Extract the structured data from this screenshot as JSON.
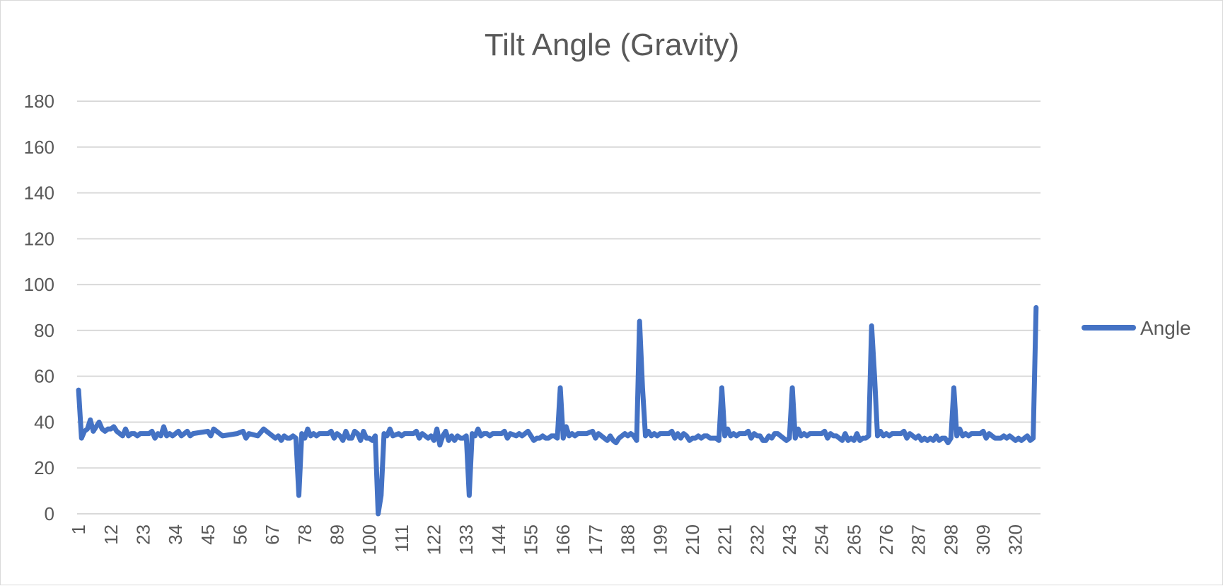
{
  "chart_data": {
    "type": "line",
    "title": "Tilt Angle (Gravity)",
    "xlabel": "",
    "ylabel": "",
    "ylim": [
      0,
      180
    ],
    "yticks": [
      0,
      20,
      40,
      60,
      80,
      100,
      120,
      140,
      160,
      180
    ],
    "xtick_labels": [
      "1",
      "12",
      "23",
      "34",
      "45",
      "56",
      "67",
      "78",
      "89",
      "100",
      "111",
      "122",
      "133",
      "144",
      "155",
      "166",
      "177",
      "188",
      "199",
      "210",
      "221",
      "232",
      "243",
      "254",
      "265",
      "276",
      "287",
      "298",
      "309",
      "320"
    ],
    "grid": true,
    "legend_position": "right",
    "x_count": 328,
    "series": [
      {
        "name": "Angle",
        "color": "#4472c4",
        "points": [
          [
            1,
            54
          ],
          [
            2,
            33
          ],
          [
            3,
            36
          ],
          [
            4,
            37
          ],
          [
            5,
            41
          ],
          [
            6,
            36
          ],
          [
            7,
            38
          ],
          [
            8,
            40
          ],
          [
            9,
            37
          ],
          [
            10,
            36
          ],
          [
            11,
            37
          ],
          [
            12,
            37
          ],
          [
            13,
            38
          ],
          [
            14,
            36
          ],
          [
            15,
            35
          ],
          [
            16,
            34
          ],
          [
            17,
            37
          ],
          [
            18,
            34
          ],
          [
            19,
            35
          ],
          [
            20,
            35
          ],
          [
            21,
            34
          ],
          [
            22,
            35
          ],
          [
            23,
            35
          ],
          [
            24,
            35
          ],
          [
            25,
            35
          ],
          [
            26,
            36
          ],
          [
            27,
            33
          ],
          [
            28,
            35
          ],
          [
            29,
            34
          ],
          [
            30,
            38
          ],
          [
            31,
            34
          ],
          [
            32,
            35
          ],
          [
            33,
            34
          ],
          [
            34,
            35
          ],
          [
            35,
            36
          ],
          [
            36,
            34
          ],
          [
            37,
            35
          ],
          [
            38,
            36
          ],
          [
            39,
            34
          ],
          [
            40,
            35
          ],
          [
            45,
            36
          ],
          [
            46,
            34
          ],
          [
            47,
            37
          ],
          [
            50,
            34
          ],
          [
            55,
            35
          ],
          [
            57,
            36
          ],
          [
            58,
            33
          ],
          [
            59,
            35
          ],
          [
            62,
            34
          ],
          [
            64,
            37
          ],
          [
            67,
            34
          ],
          [
            68,
            33
          ],
          [
            69,
            34
          ],
          [
            70,
            32
          ],
          [
            71,
            34
          ],
          [
            72,
            33
          ],
          [
            73,
            33
          ],
          [
            74,
            34
          ],
          [
            75,
            33
          ],
          [
            76,
            8
          ],
          [
            77,
            35
          ],
          [
            78,
            33
          ],
          [
            79,
            37
          ],
          [
            80,
            34
          ],
          [
            81,
            35
          ],
          [
            82,
            34
          ],
          [
            83,
            35
          ],
          [
            85,
            35
          ],
          [
            86,
            35
          ],
          [
            87,
            36
          ],
          [
            88,
            33
          ],
          [
            89,
            35
          ],
          [
            90,
            34
          ],
          [
            91,
            32
          ],
          [
            92,
            36
          ],
          [
            93,
            33
          ],
          [
            94,
            33
          ],
          [
            95,
            36
          ],
          [
            96,
            35
          ],
          [
            97,
            32
          ],
          [
            98,
            36
          ],
          [
            99,
            33
          ],
          [
            100,
            33
          ],
          [
            101,
            32
          ],
          [
            102,
            34
          ],
          [
            103,
            0
          ],
          [
            104,
            8
          ],
          [
            105,
            35
          ],
          [
            106,
            34
          ],
          [
            107,
            37
          ],
          [
            108,
            34
          ],
          [
            110,
            35
          ],
          [
            111,
            34
          ],
          [
            112,
            35
          ],
          [
            114,
            35
          ],
          [
            115,
            35
          ],
          [
            116,
            36
          ],
          [
            117,
            33
          ],
          [
            118,
            35
          ],
          [
            120,
            33
          ],
          [
            121,
            34
          ],
          [
            122,
            32
          ],
          [
            123,
            37
          ],
          [
            124,
            30
          ],
          [
            125,
            34
          ],
          [
            126,
            36
          ],
          [
            127,
            32
          ],
          [
            128,
            34
          ],
          [
            129,
            32
          ],
          [
            130,
            34
          ],
          [
            131,
            33
          ],
          [
            132,
            33
          ],
          [
            133,
            34
          ],
          [
            134,
            8
          ],
          [
            135,
            35
          ],
          [
            136,
            34
          ],
          [
            137,
            37
          ],
          [
            138,
            34
          ],
          [
            139,
            35
          ],
          [
            140,
            35
          ],
          [
            141,
            34
          ],
          [
            142,
            35
          ],
          [
            145,
            35
          ],
          [
            146,
            36
          ],
          [
            147,
            33
          ],
          [
            148,
            35
          ],
          [
            150,
            34
          ],
          [
            151,
            35
          ],
          [
            152,
            34
          ],
          [
            153,
            35
          ],
          [
            154,
            36
          ],
          [
            155,
            34
          ],
          [
            156,
            32
          ],
          [
            157,
            33
          ],
          [
            158,
            33
          ],
          [
            159,
            34
          ],
          [
            160,
            33
          ],
          [
            161,
            33
          ],
          [
            162,
            34
          ],
          [
            163,
            34
          ],
          [
            164,
            33
          ],
          [
            165,
            55
          ],
          [
            166,
            33
          ],
          [
            167,
            38
          ],
          [
            168,
            34
          ],
          [
            169,
            35
          ],
          [
            170,
            34
          ],
          [
            171,
            35
          ],
          [
            172,
            35
          ],
          [
            174,
            35
          ],
          [
            176,
            36
          ],
          [
            177,
            33
          ],
          [
            178,
            35
          ],
          [
            179,
            34
          ],
          [
            180,
            33
          ],
          [
            181,
            32
          ],
          [
            182,
            34
          ],
          [
            183,
            32
          ],
          [
            184,
            31
          ],
          [
            185,
            33
          ],
          [
            186,
            34
          ],
          [
            187,
            35
          ],
          [
            188,
            34
          ],
          [
            189,
            35
          ],
          [
            190,
            34
          ],
          [
            191,
            32
          ],
          [
            192,
            84
          ],
          [
            193,
            55
          ],
          [
            194,
            34
          ],
          [
            195,
            36
          ],
          [
            196,
            34
          ],
          [
            197,
            35
          ],
          [
            198,
            34
          ],
          [
            199,
            35
          ],
          [
            200,
            35
          ],
          [
            201,
            35
          ],
          [
            202,
            35
          ],
          [
            203,
            36
          ],
          [
            204,
            33
          ],
          [
            205,
            35
          ],
          [
            206,
            33
          ],
          [
            207,
            35
          ],
          [
            208,
            34
          ],
          [
            209,
            32
          ],
          [
            210,
            33
          ],
          [
            211,
            33
          ],
          [
            212,
            34
          ],
          [
            213,
            33
          ],
          [
            214,
            34
          ],
          [
            215,
            34
          ],
          [
            216,
            33
          ],
          [
            217,
            33
          ],
          [
            218,
            33
          ],
          [
            219,
            32
          ],
          [
            220,
            55
          ],
          [
            221,
            34
          ],
          [
            222,
            37
          ],
          [
            223,
            34
          ],
          [
            224,
            35
          ],
          [
            225,
            34
          ],
          [
            226,
            35
          ],
          [
            227,
            35
          ],
          [
            228,
            35
          ],
          [
            229,
            36
          ],
          [
            230,
            33
          ],
          [
            231,
            35
          ],
          [
            232,
            34
          ],
          [
            233,
            34
          ],
          [
            234,
            32
          ],
          [
            235,
            32
          ],
          [
            236,
            34
          ],
          [
            237,
            33
          ],
          [
            238,
            35
          ],
          [
            239,
            35
          ],
          [
            240,
            34
          ],
          [
            241,
            33
          ],
          [
            242,
            32
          ],
          [
            243,
            33
          ],
          [
            244,
            55
          ],
          [
            245,
            33
          ],
          [
            246,
            37
          ],
          [
            247,
            34
          ],
          [
            248,
            35
          ],
          [
            249,
            34
          ],
          [
            250,
            35
          ],
          [
            251,
            35
          ],
          [
            253,
            35
          ],
          [
            254,
            35
          ],
          [
            255,
            36
          ],
          [
            256,
            33
          ],
          [
            257,
            35
          ],
          [
            258,
            34
          ],
          [
            259,
            34
          ],
          [
            260,
            33
          ],
          [
            261,
            32
          ],
          [
            262,
            35
          ],
          [
            263,
            32
          ],
          [
            264,
            33
          ],
          [
            265,
            32
          ],
          [
            266,
            35
          ],
          [
            267,
            32
          ],
          [
            268,
            33
          ],
          [
            269,
            33
          ],
          [
            270,
            34
          ],
          [
            271,
            82
          ],
          [
            272,
            60
          ],
          [
            273,
            34
          ],
          [
            274,
            36
          ],
          [
            275,
            34
          ],
          [
            276,
            35
          ],
          [
            277,
            34
          ],
          [
            278,
            35
          ],
          [
            279,
            35
          ],
          [
            280,
            35
          ],
          [
            281,
            35
          ],
          [
            282,
            36
          ],
          [
            283,
            33
          ],
          [
            284,
            35
          ],
          [
            285,
            34
          ],
          [
            286,
            33
          ],
          [
            287,
            34
          ],
          [
            288,
            32
          ],
          [
            289,
            33
          ],
          [
            290,
            32
          ],
          [
            291,
            33
          ],
          [
            292,
            32
          ],
          [
            293,
            34
          ],
          [
            294,
            32
          ],
          [
            295,
            33
          ],
          [
            296,
            33
          ],
          [
            297,
            31
          ],
          [
            298,
            33
          ],
          [
            299,
            55
          ],
          [
            300,
            34
          ],
          [
            301,
            37
          ],
          [
            302,
            34
          ],
          [
            303,
            35
          ],
          [
            304,
            34
          ],
          [
            305,
            35
          ],
          [
            306,
            35
          ],
          [
            307,
            35
          ],
          [
            308,
            35
          ],
          [
            309,
            36
          ],
          [
            310,
            33
          ],
          [
            311,
            35
          ],
          [
            312,
            34
          ],
          [
            313,
            33
          ],
          [
            314,
            33
          ],
          [
            315,
            33
          ],
          [
            316,
            34
          ],
          [
            317,
            33
          ],
          [
            318,
            34
          ],
          [
            319,
            33
          ],
          [
            320,
            32
          ],
          [
            321,
            33
          ],
          [
            322,
            32
          ],
          [
            323,
            33
          ],
          [
            324,
            34
          ],
          [
            325,
            32
          ],
          [
            326,
            33
          ],
          [
            327,
            90
          ]
        ]
      }
    ]
  }
}
